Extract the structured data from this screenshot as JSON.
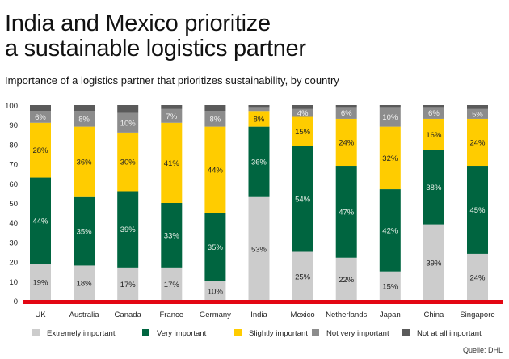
{
  "title_line1": "India and Mexico prioritize",
  "title_line2": "a sustainable logistics partner",
  "subtitle": "Importance of a logistics partner that prioritizes sustainability, by country",
  "source": "Quelle: DHL",
  "chart_data": {
    "type": "bar",
    "stacked": true,
    "categories": [
      "UK",
      "Australia",
      "Canada",
      "France",
      "Germany",
      "India",
      "Mexico",
      "Netherlands",
      "Japan",
      "China",
      "Singapore"
    ],
    "ylim": [
      0,
      100
    ],
    "yticks": [
      0,
      10,
      20,
      30,
      40,
      50,
      60,
      70,
      80,
      90,
      100
    ],
    "grid": false,
    "legend_position": "bottom",
    "series": [
      {
        "name": "Extremely important",
        "color": "#cccccc",
        "label_color": "#222222",
        "values": [
          19,
          18,
          17,
          17,
          10,
          53,
          25,
          22,
          15,
          39,
          24
        ]
      },
      {
        "name": "Very important",
        "color": "#006540",
        "label_color": "#e8f0e8",
        "values": [
          44,
          35,
          39,
          33,
          35,
          36,
          54,
          47,
          42,
          38,
          45
        ]
      },
      {
        "name": "Slightly important",
        "color": "#ffcc00",
        "label_color": "#222222",
        "values": [
          28,
          36,
          30,
          41,
          44,
          8,
          15,
          24,
          32,
          16,
          24
        ]
      },
      {
        "name": "Not very important",
        "color": "#8c8c8c",
        "label_color": "#f0f0f0",
        "values": [
          6,
          8,
          10,
          7,
          8,
          2,
          4,
          6,
          10,
          6,
          5
        ],
        "labeled": [
          true,
          true,
          true,
          true,
          true,
          false,
          true,
          true,
          true,
          true,
          true
        ]
      },
      {
        "name": "Not at all important",
        "color": "#5a5a5a",
        "label_color": "#ffffff",
        "values": [
          3,
          3,
          4,
          2,
          3,
          1,
          2,
          1,
          1,
          1,
          2
        ],
        "labeled": [
          false,
          false,
          false,
          false,
          false,
          false,
          false,
          false,
          false,
          false,
          false
        ]
      }
    ],
    "baseline_color": "#e30613"
  }
}
